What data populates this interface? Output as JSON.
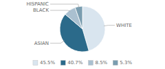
{
  "chart_data": {
    "type": "pie",
    "categories": [
      "WHITE",
      "ASIAN",
      "BLACK",
      "HISPANIC"
    ],
    "values": [
      45.5,
      40.7,
      8.5,
      5.3
    ],
    "value_labels": [
      "45.5%",
      "40.7%",
      "8.5%",
      "5.3%"
    ],
    "colors": [
      "#d9e5ef",
      "#2b6a8a",
      "#aac0d0",
      "#7a9db0"
    ],
    "legend": "bottom"
  }
}
